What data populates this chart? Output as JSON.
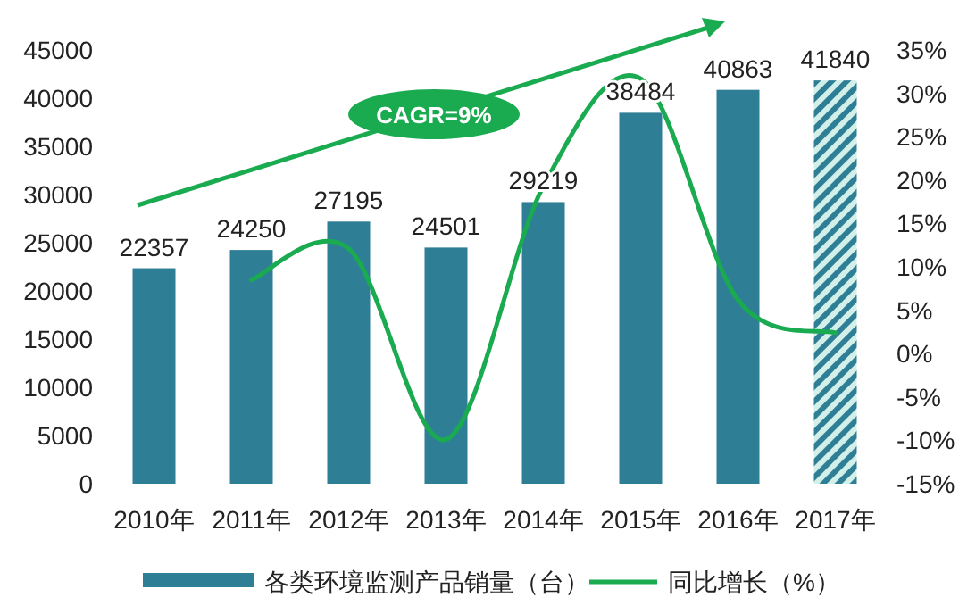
{
  "chart_data": {
    "type": "bar",
    "categories": [
      "2010年",
      "2011年",
      "2012年",
      "2013年",
      "2014年",
      "2015年",
      "2016年",
      "2017年"
    ],
    "series": [
      {
        "name": "各类环境监测产品销量（台）",
        "color": "#2e7f96",
        "colors": [
          "#2e7f96",
          "#2e7f96",
          "#2e7f96",
          "#2e7f96",
          "#2e7f96",
          "#2e7f96",
          "#2e7f96",
          "#d2efe9"
        ],
        "values": [
          22357,
          24250,
          27195,
          24501,
          29219,
          38484,
          40863,
          41840
        ],
        "value_labels": [
          "22357",
          "24250",
          "27195",
          "24501",
          "29219",
          "38484",
          "40863",
          "41840"
        ]
      },
      {
        "name": "同比增长（%）",
        "type": "line",
        "axis": "y2",
        "color": "#1aab50",
        "values": [
          null,
          8.5,
          12.1,
          -9.9,
          19.3,
          31.7,
          6.2,
          2.4
        ]
      }
    ],
    "ylim": [
      0,
      45000
    ],
    "yticks": [
      0,
      5000,
      10000,
      15000,
      20000,
      25000,
      30000,
      35000,
      40000,
      45000
    ],
    "y2lim": [
      -15,
      35
    ],
    "y2ticks": [
      {
        "value": -15,
        "label": "-15%"
      },
      {
        "value": -10,
        "label": "-10%"
      },
      {
        "value": -5,
        "label": "-5%"
      },
      {
        "value": 0,
        "label": "0%"
      },
      {
        "value": 5,
        "label": "5%"
      },
      {
        "value": 10,
        "label": "10%"
      },
      {
        "value": 15,
        "label": "15%"
      },
      {
        "value": 20,
        "label": "20%"
      },
      {
        "value": 25,
        "label": "25%"
      },
      {
        "value": 30,
        "label": "30%"
      },
      {
        "value": 35,
        "label": "35%"
      }
    ],
    "legend": "bottom",
    "grid": false,
    "annotations": [
      "CAGR=9%"
    ]
  }
}
